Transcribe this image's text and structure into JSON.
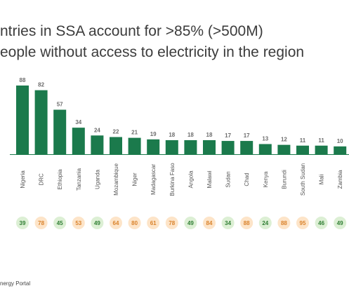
{
  "title": {
    "line1": "ntries in SSA account for >85% (>500M)",
    "line2": "eople without access to electricity in the region"
  },
  "source": "nergy Portal",
  "colors": {
    "bar": "#1b7a4c",
    "baseline": "#1b7a4c",
    "value_label": "#6d6d6d",
    "category_label": "#555555",
    "circle_green_fill": "#dcefd4",
    "circle_green_text": "#2e7d32",
    "circle_orange_fill": "#fde4c8",
    "circle_orange_text": "#d9822b"
  },
  "chart_data": {
    "type": "bar",
    "categories": [
      "Nigeria",
      "DRC",
      "Ethiopia",
      "Tanzania",
      "Uganda",
      "Mozambique",
      "Niger",
      "Madagascar",
      "Burkina Faso",
      "Angola",
      "Malawi",
      "Sudan",
      "Chad",
      "Kenya",
      "Burundi",
      "South Sudan",
      "Mali",
      "Zambia"
    ],
    "values": [
      88,
      82,
      57,
      34,
      24,
      22,
      21,
      19,
      18,
      18,
      18,
      17,
      17,
      13,
      12,
      11,
      11,
      10
    ],
    "secondary_values": [
      39,
      78,
      45,
      53,
      49,
      64,
      80,
      61,
      78,
      49,
      84,
      34,
      88,
      24,
      88,
      95,
      46,
      49
    ],
    "secondary_highlight": [
      "green",
      "orange",
      "green",
      "orange",
      "green",
      "orange",
      "orange",
      "orange",
      "orange",
      "green",
      "orange",
      "green",
      "orange",
      "green",
      "orange",
      "orange",
      "green",
      "green"
    ],
    "ylim": [
      0,
      88
    ],
    "grid": false,
    "legend": "none"
  }
}
